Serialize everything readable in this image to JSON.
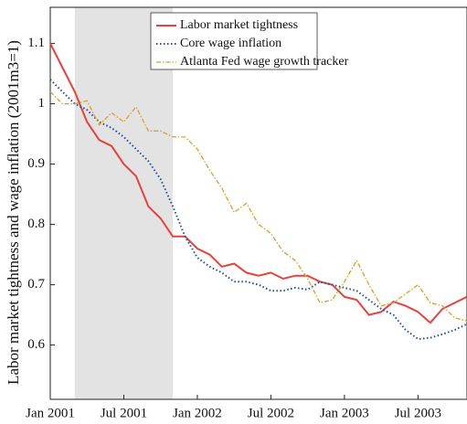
{
  "chart_data": {
    "type": "line",
    "y_label": "Labor market tightness and wage inflation (2001m3=1)",
    "x": [
      "2001-01",
      "2001-02",
      "2001-03",
      "2001-04",
      "2001-05",
      "2001-06",
      "2001-07",
      "2001-08",
      "2001-09",
      "2001-10",
      "2001-11",
      "2001-12",
      "2002-01",
      "2002-02",
      "2002-03",
      "2002-04",
      "2002-05",
      "2002-06",
      "2002-07",
      "2002-08",
      "2002-09",
      "2002-10",
      "2002-11",
      "2002-12",
      "2003-01",
      "2003-02",
      "2003-03",
      "2003-04",
      "2003-05",
      "2003-06",
      "2003-07",
      "2003-08",
      "2003-09",
      "2003-10",
      "2003-11"
    ],
    "series": [
      {
        "name": "Labor market tightness",
        "color": "#e8413c",
        "dash": "solid",
        "values": [
          1.1,
          1.06,
          1.02,
          0.97,
          0.94,
          0.93,
          0.9,
          0.88,
          0.83,
          0.81,
          0.78,
          0.78,
          0.76,
          0.75,
          0.73,
          0.735,
          0.72,
          0.715,
          0.72,
          0.71,
          0.715,
          0.715,
          0.705,
          0.7,
          0.68,
          0.675,
          0.65,
          0.655,
          0.672,
          0.665,
          0.655,
          0.637,
          0.66,
          0.67,
          0.68
        ]
      },
      {
        "name": "Core wage inflation",
        "color": "#1f4fa3",
        "dash": "dotted",
        "values": [
          1.04,
          1.02,
          1.0,
          0.99,
          0.97,
          0.96,
          0.945,
          0.925,
          0.905,
          0.875,
          0.83,
          0.78,
          0.745,
          0.73,
          0.72,
          0.705,
          0.705,
          0.7,
          0.69,
          0.69,
          0.695,
          0.692,
          0.705,
          0.7,
          0.695,
          0.69,
          0.675,
          0.66,
          0.65,
          0.625,
          0.61,
          0.612,
          0.618,
          0.625,
          0.635
        ]
      },
      {
        "name": "Atlanta Fed wage growth tracker",
        "color": "#d4a22a",
        "dash": "dashdot",
        "values": [
          1.02,
          1.0,
          1.0,
          1.005,
          0.965,
          0.985,
          0.97,
          0.995,
          0.955,
          0.955,
          0.945,
          0.945,
          0.925,
          0.89,
          0.86,
          0.82,
          0.835,
          0.8,
          0.785,
          0.755,
          0.74,
          0.71,
          0.67,
          0.675,
          0.705,
          0.74,
          0.7,
          0.665,
          0.67,
          0.685,
          0.7,
          0.67,
          0.665,
          0.645,
          0.64
        ]
      }
    ],
    "shaded": {
      "from": "2001-03",
      "to": "2001-11",
      "color": "#e3e3e3"
    },
    "xlim": [
      "2001-01",
      "2003-11"
    ],
    "xticks": [
      {
        "value": "2001-01",
        "label": "Jan 2001"
      },
      {
        "value": "2001-07",
        "label": "Jul 2001"
      },
      {
        "value": "2002-01",
        "label": "Jan 2002"
      },
      {
        "value": "2002-07",
        "label": "Jul 2002"
      },
      {
        "value": "2003-01",
        "label": "Jan 2003"
      },
      {
        "value": "2003-07",
        "label": "Jul 2003"
      }
    ],
    "ylim": [
      0.51,
      1.16
    ],
    "yticks": [
      0.6,
      0.7,
      0.8,
      0.9,
      1,
      1.1
    ],
    "legend": "top"
  }
}
